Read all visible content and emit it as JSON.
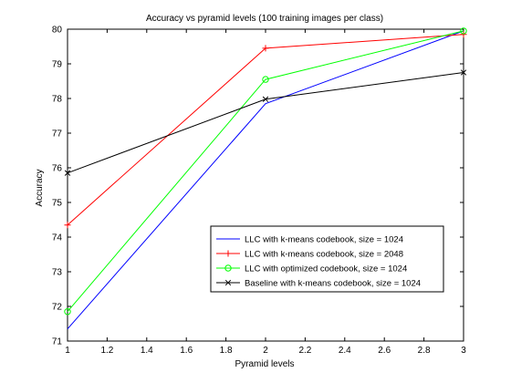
{
  "chart_data": {
    "type": "line",
    "title": "Accuracy vs pyramid levels (100 training images per class)",
    "xlabel": "Pyramid levels",
    "ylabel": "Accuracy",
    "xlim": [
      1,
      3
    ],
    "ylim": [
      71,
      80
    ],
    "x_ticks": [
      "1",
      "1.2",
      "1.4",
      "1.6",
      "1.8",
      "2",
      "2.2",
      "2.4",
      "2.6",
      "2.8",
      "3"
    ],
    "y_ticks": [
      "71",
      "72",
      "73",
      "74",
      "75",
      "76",
      "77",
      "78",
      "79",
      "80"
    ],
    "grid": false,
    "legend_position": "lower-right",
    "series": [
      {
        "name": "LLC with k-means codebook, size = 1024",
        "color": "#0000ff",
        "marker": "none",
        "x": [
          1,
          2,
          3
        ],
        "y": [
          71.35,
          77.85,
          79.95
        ]
      },
      {
        "name": "LLC with k-means codebook, size = 2048",
        "color": "#ff0000",
        "marker": "plus",
        "x": [
          1,
          2,
          3
        ],
        "y": [
          74.35,
          79.45,
          79.85
        ]
      },
      {
        "name": "LLC with optimized codebook, size = 1024",
        "color": "#00ff00",
        "marker": "circle",
        "x": [
          1,
          2,
          3
        ],
        "y": [
          71.85,
          78.55,
          79.95
        ]
      },
      {
        "name": "Baseline with k-means codebook, size = 1024",
        "color": "#000000",
        "marker": "x",
        "x": [
          1,
          2,
          3
        ],
        "y": [
          75.85,
          77.98,
          78.75
        ]
      }
    ]
  }
}
